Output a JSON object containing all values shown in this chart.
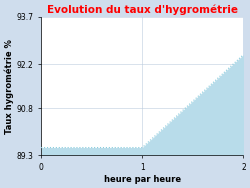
{
  "title": "Evolution du taux d'hygrométrie",
  "title_color": "#ff0000",
  "xlabel": "heure par heure",
  "ylabel": "Taux hygrométrie %",
  "background_color": "#cfdded",
  "plot_bg_color": "#ffffff",
  "x_data": [
    0,
    1,
    2
  ],
  "y_data": [
    89.55,
    89.55,
    92.5
  ],
  "line_color": "#88ccdd",
  "fill_color": "#b8dcea",
  "ylim": [
    89.3,
    93.7
  ],
  "xlim": [
    0,
    2
  ],
  "yticks": [
    89.3,
    90.8,
    92.2,
    93.7
  ],
  "xticks": [
    0,
    1,
    2
  ],
  "grid_color": "#bbccdd",
  "title_fontsize": 7.5,
  "label_fontsize": 6,
  "tick_fontsize": 5.5
}
